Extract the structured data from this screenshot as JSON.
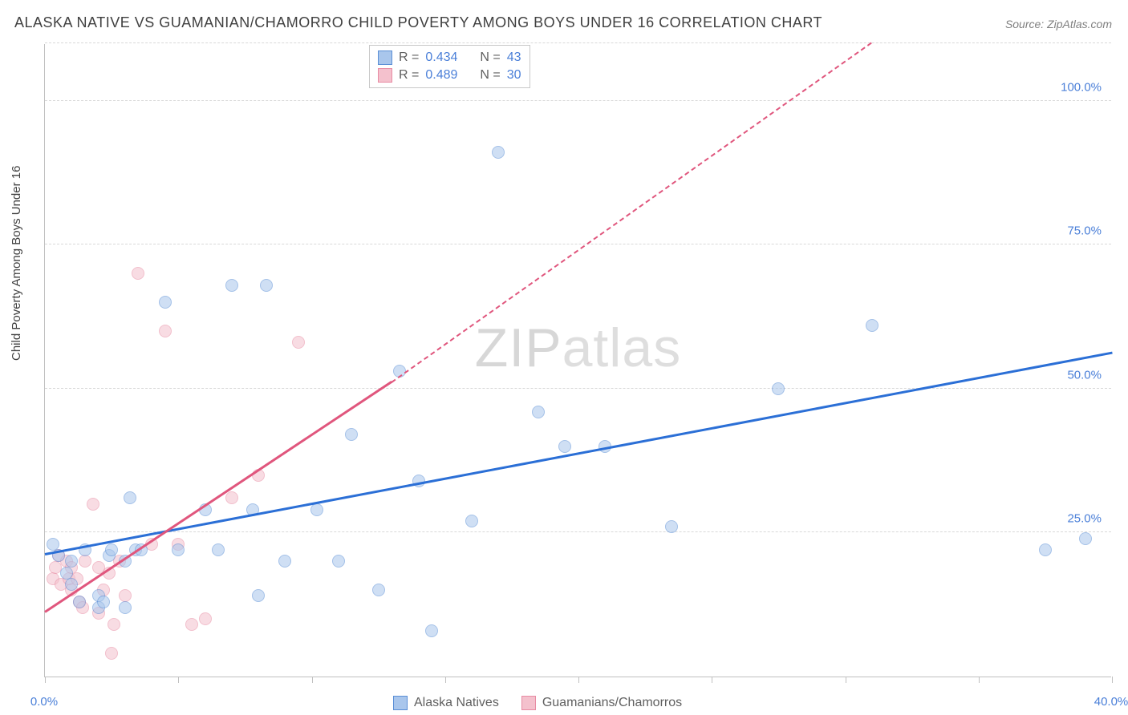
{
  "title": "ALASKA NATIVE VS GUAMANIAN/CHAMORRO CHILD POVERTY AMONG BOYS UNDER 16 CORRELATION CHART",
  "source": "Source: ZipAtlas.com",
  "y_axis_label": "Child Poverty Among Boys Under 16",
  "watermark": {
    "bold": "ZIP",
    "thin": "atlas"
  },
  "chart": {
    "type": "scatter",
    "xlim": [
      0,
      40
    ],
    "ylim": [
      0,
      110
    ],
    "x_ticks": [
      0,
      5,
      10,
      15,
      20,
      25,
      30,
      35,
      40
    ],
    "x_tick_labels": {
      "0": "0.0%",
      "40": "40.0%"
    },
    "y_gridlines": [
      25,
      50,
      75,
      100,
      110
    ],
    "y_tick_labels": {
      "25": "25.0%",
      "50": "50.0%",
      "75": "75.0%",
      "100": "100.0%"
    },
    "tick_label_color": "#4a7fd8",
    "background_color": "#ffffff",
    "grid_color": "#d8d8d8",
    "grid_dash": true,
    "marker_radius": 8,
    "marker_stroke_width": 1.2,
    "marker_opacity": 0.55,
    "series": [
      {
        "name": "Alaska Natives",
        "fill_color": "#a9c6ec",
        "stroke_color": "#5b8fd6",
        "trend_color": "#2b6fd6",
        "r_label": "R =",
        "r_value": "0.434",
        "n_label": "N =",
        "n_value": "43",
        "trend": {
          "x1": 0,
          "y1": 21,
          "x2": 40,
          "y2": 56,
          "width": 3
        },
        "points": [
          [
            0.3,
            23
          ],
          [
            0.5,
            21
          ],
          [
            0.8,
            18
          ],
          [
            1.0,
            20
          ],
          [
            1.0,
            16
          ],
          [
            1.3,
            13
          ],
          [
            1.5,
            22
          ],
          [
            2.0,
            12
          ],
          [
            2.0,
            14
          ],
          [
            2.2,
            13
          ],
          [
            2.4,
            21
          ],
          [
            2.5,
            22
          ],
          [
            3.0,
            12
          ],
          [
            3.0,
            20
          ],
          [
            3.2,
            31
          ],
          [
            3.4,
            22
          ],
          [
            3.6,
            22
          ],
          [
            4.5,
            65
          ],
          [
            5.0,
            22
          ],
          [
            6.0,
            29
          ],
          [
            6.5,
            22
          ],
          [
            7.0,
            68
          ],
          [
            7.8,
            29
          ],
          [
            8.0,
            14
          ],
          [
            8.3,
            68
          ],
          [
            9.0,
            20
          ],
          [
            10.2,
            29
          ],
          [
            11.0,
            20
          ],
          [
            11.5,
            42
          ],
          [
            12.5,
            15
          ],
          [
            13.3,
            53
          ],
          [
            14.0,
            34
          ],
          [
            14.5,
            8
          ],
          [
            16.0,
            27
          ],
          [
            17.0,
            91
          ],
          [
            18.5,
            46
          ],
          [
            19.5,
            40
          ],
          [
            21.0,
            40
          ],
          [
            23.5,
            26
          ],
          [
            27.5,
            50
          ],
          [
            31.0,
            61
          ],
          [
            37.5,
            22
          ],
          [
            39.0,
            24
          ]
        ]
      },
      {
        "name": "Guamanians/Chamorros",
        "fill_color": "#f4c1cd",
        "stroke_color": "#e88ba3",
        "trend_color": "#e0567d",
        "r_label": "R =",
        "r_value": "0.489",
        "n_label": "N =",
        "n_value": "30",
        "trend": {
          "x1": 0,
          "y1": 11,
          "x2": 13,
          "y2": 51,
          "width": 3
        },
        "trend_extend": {
          "x1": 13,
          "y1": 51,
          "x2": 31,
          "y2": 110
        },
        "points": [
          [
            0.3,
            17
          ],
          [
            0.4,
            19
          ],
          [
            0.5,
            21
          ],
          [
            0.6,
            16
          ],
          [
            0.8,
            20
          ],
          [
            0.9,
            17
          ],
          [
            1.0,
            19
          ],
          [
            1.0,
            15
          ],
          [
            1.2,
            17
          ],
          [
            1.3,
            13
          ],
          [
            1.4,
            12
          ],
          [
            1.5,
            20
          ],
          [
            1.8,
            30
          ],
          [
            2.0,
            19
          ],
          [
            2.0,
            11
          ],
          [
            2.2,
            15
          ],
          [
            2.4,
            18
          ],
          [
            2.5,
            4
          ],
          [
            2.6,
            9
          ],
          [
            2.8,
            20
          ],
          [
            3.0,
            14
          ],
          [
            3.5,
            70
          ],
          [
            4.0,
            23
          ],
          [
            4.5,
            60
          ],
          [
            5.0,
            23
          ],
          [
            5.5,
            9
          ],
          [
            6.0,
            10
          ],
          [
            7.0,
            31
          ],
          [
            8.0,
            35
          ],
          [
            9.5,
            58
          ]
        ]
      }
    ]
  },
  "legend_bottom": [
    {
      "label": "Alaska Natives",
      "fill": "#a9c6ec",
      "stroke": "#5b8fd6"
    },
    {
      "label": "Guamanians/Chamorros",
      "fill": "#f4c1cd",
      "stroke": "#e88ba3"
    }
  ]
}
